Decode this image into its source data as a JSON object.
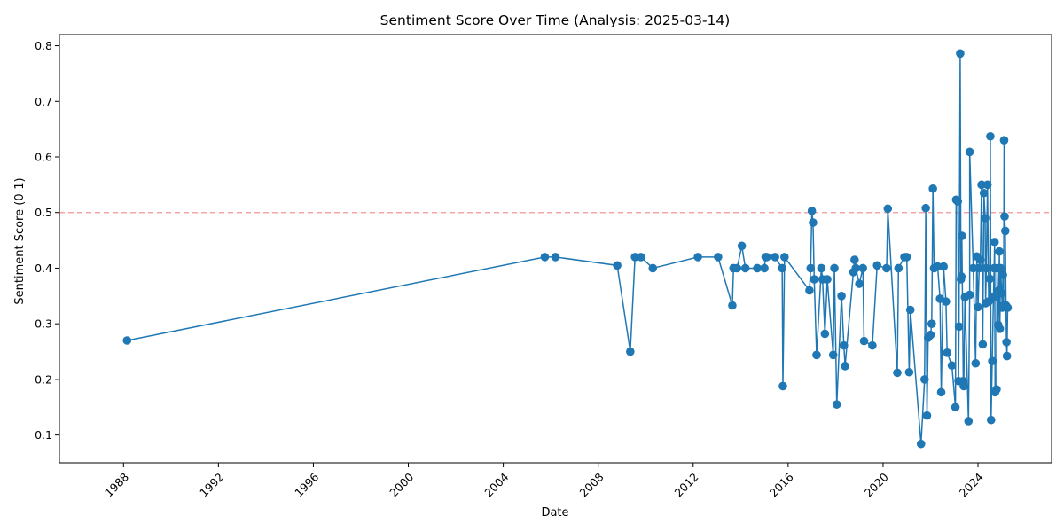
{
  "chart_data": {
    "type": "line",
    "title": "Sentiment Score Over Time (Analysis: 2025-03-14)",
    "xlabel": "Date",
    "ylabel": "Sentiment Score (0-1)",
    "x_ticks": [
      "1988",
      "1992",
      "1996",
      "2000",
      "2004",
      "2008",
      "2012",
      "2016",
      "2020",
      "2024"
    ],
    "y_ticks": [
      "0.1",
      "0.2",
      "0.3",
      "0.4",
      "0.5",
      "0.6",
      "0.7",
      "0.8"
    ],
    "xlim": [
      1985.3,
      2027.1
    ],
    "ylim": [
      0.05,
      0.82
    ],
    "grid": false,
    "colors": {
      "series": "#1f77b4",
      "threshold": "#f4a6a6"
    },
    "threshold": {
      "y": 0.5,
      "style": "dashed"
    },
    "series": [
      {
        "marker": "circle",
        "points": [
          [
            1988.15,
            0.27
          ],
          [
            2005.75,
            0.42
          ],
          [
            2006.2,
            0.42
          ],
          [
            2008.8,
            0.405
          ],
          [
            2009.35,
            0.25
          ],
          [
            2009.55,
            0.42
          ],
          [
            2009.8,
            0.42
          ],
          [
            2010.3,
            0.4
          ],
          [
            2012.2,
            0.42
          ],
          [
            2013.05,
            0.42
          ],
          [
            2013.65,
            0.333
          ],
          [
            2013.7,
            0.4
          ],
          [
            2013.85,
            0.4
          ],
          [
            2014.05,
            0.44
          ],
          [
            2014.2,
            0.4
          ],
          [
            2014.7,
            0.4
          ],
          [
            2015.0,
            0.4
          ],
          [
            2015.05,
            0.42
          ],
          [
            2015.1,
            0.42
          ],
          [
            2015.45,
            0.42
          ],
          [
            2015.75,
            0.4
          ],
          [
            2015.78,
            0.188
          ],
          [
            2015.85,
            0.42
          ],
          [
            2016.9,
            0.36
          ],
          [
            2016.95,
            0.4
          ],
          [
            2017.0,
            0.503
          ],
          [
            2017.05,
            0.482
          ],
          [
            2017.1,
            0.38
          ],
          [
            2017.2,
            0.244
          ],
          [
            2017.4,
            0.4
          ],
          [
            2017.45,
            0.38
          ],
          [
            2017.55,
            0.282
          ],
          [
            2017.65,
            0.38
          ],
          [
            2017.9,
            0.244
          ],
          [
            2017.95,
            0.4
          ],
          [
            2018.05,
            0.155
          ],
          [
            2018.25,
            0.35
          ],
          [
            2018.35,
            0.261
          ],
          [
            2018.4,
            0.224
          ],
          [
            2018.75,
            0.393
          ],
          [
            2018.8,
            0.415
          ],
          [
            2018.85,
            0.4
          ],
          [
            2019.0,
            0.372
          ],
          [
            2019.15,
            0.4
          ],
          [
            2019.2,
            0.269
          ],
          [
            2019.55,
            0.261
          ],
          [
            2019.75,
            0.405
          ],
          [
            2020.15,
            0.4
          ],
          [
            2020.2,
            0.507
          ],
          [
            2020.6,
            0.212
          ],
          [
            2020.65,
            0.4
          ],
          [
            2020.9,
            0.42
          ],
          [
            2021.0,
            0.42
          ],
          [
            2021.1,
            0.213
          ],
          [
            2021.15,
            0.325
          ],
          [
            2021.6,
            0.084
          ],
          [
            2021.75,
            0.2
          ],
          [
            2021.8,
            0.508
          ],
          [
            2021.85,
            0.135
          ],
          [
            2021.9,
            0.275
          ],
          [
            2022.0,
            0.28
          ],
          [
            2022.05,
            0.3
          ],
          [
            2022.1,
            0.543
          ],
          [
            2022.15,
            0.4
          ],
          [
            2022.3,
            0.403
          ],
          [
            2022.4,
            0.345
          ],
          [
            2022.45,
            0.177
          ],
          [
            2022.55,
            0.403
          ],
          [
            2022.65,
            0.34
          ],
          [
            2022.7,
            0.248
          ],
          [
            2022.9,
            0.225
          ],
          [
            2023.05,
            0.15
          ],
          [
            2023.08,
            0.523
          ],
          [
            2023.15,
            0.52
          ],
          [
            2023.18,
            0.197
          ],
          [
            2023.2,
            0.295
          ],
          [
            2023.25,
            0.786
          ],
          [
            2023.28,
            0.38
          ],
          [
            2023.3,
            0.385
          ],
          [
            2023.32,
            0.458
          ],
          [
            2023.38,
            0.197
          ],
          [
            2023.4,
            0.188
          ],
          [
            2023.45,
            0.348
          ],
          [
            2023.6,
            0.125
          ],
          [
            2023.65,
            0.352
          ],
          [
            2023.65,
            0.609
          ],
          [
            2023.8,
            0.4
          ],
          [
            2023.9,
            0.229
          ],
          [
            2023.95,
            0.421
          ],
          [
            2024.0,
            0.33
          ],
          [
            2024.05,
            0.4
          ],
          [
            2024.1,
            0.415
          ],
          [
            2024.15,
            0.55
          ],
          [
            2024.2,
            0.263
          ],
          [
            2024.25,
            0.535
          ],
          [
            2024.3,
            0.49
          ],
          [
            2024.32,
            0.337
          ],
          [
            2024.35,
            0.4
          ],
          [
            2024.4,
            0.55
          ],
          [
            2024.45,
            0.34
          ],
          [
            2024.5,
            0.381
          ],
          [
            2024.52,
            0.637
          ],
          [
            2024.55,
            0.127
          ],
          [
            2024.6,
            0.233
          ],
          [
            2024.65,
            0.348
          ],
          [
            2024.68,
            0.4
          ],
          [
            2024.7,
            0.447
          ],
          [
            2024.72,
            0.177
          ],
          [
            2024.78,
            0.182
          ],
          [
            2024.8,
            0.4
          ],
          [
            2024.85,
            0.298
          ],
          [
            2024.88,
            0.36
          ],
          [
            2024.9,
            0.43
          ],
          [
            2024.92,
            0.291
          ],
          [
            2024.95,
            0.4
          ],
          [
            2025.0,
            0.355
          ],
          [
            2025.02,
            0.329
          ],
          [
            2025.05,
            0.388
          ],
          [
            2025.08,
            0.333
          ],
          [
            2025.1,
            0.63
          ],
          [
            2025.12,
            0.493
          ],
          [
            2025.15,
            0.467
          ],
          [
            2025.18,
            0.333
          ],
          [
            2025.2,
            0.267
          ],
          [
            2025.22,
            0.242
          ],
          [
            2025.25,
            0.329
          ]
        ]
      }
    ]
  }
}
